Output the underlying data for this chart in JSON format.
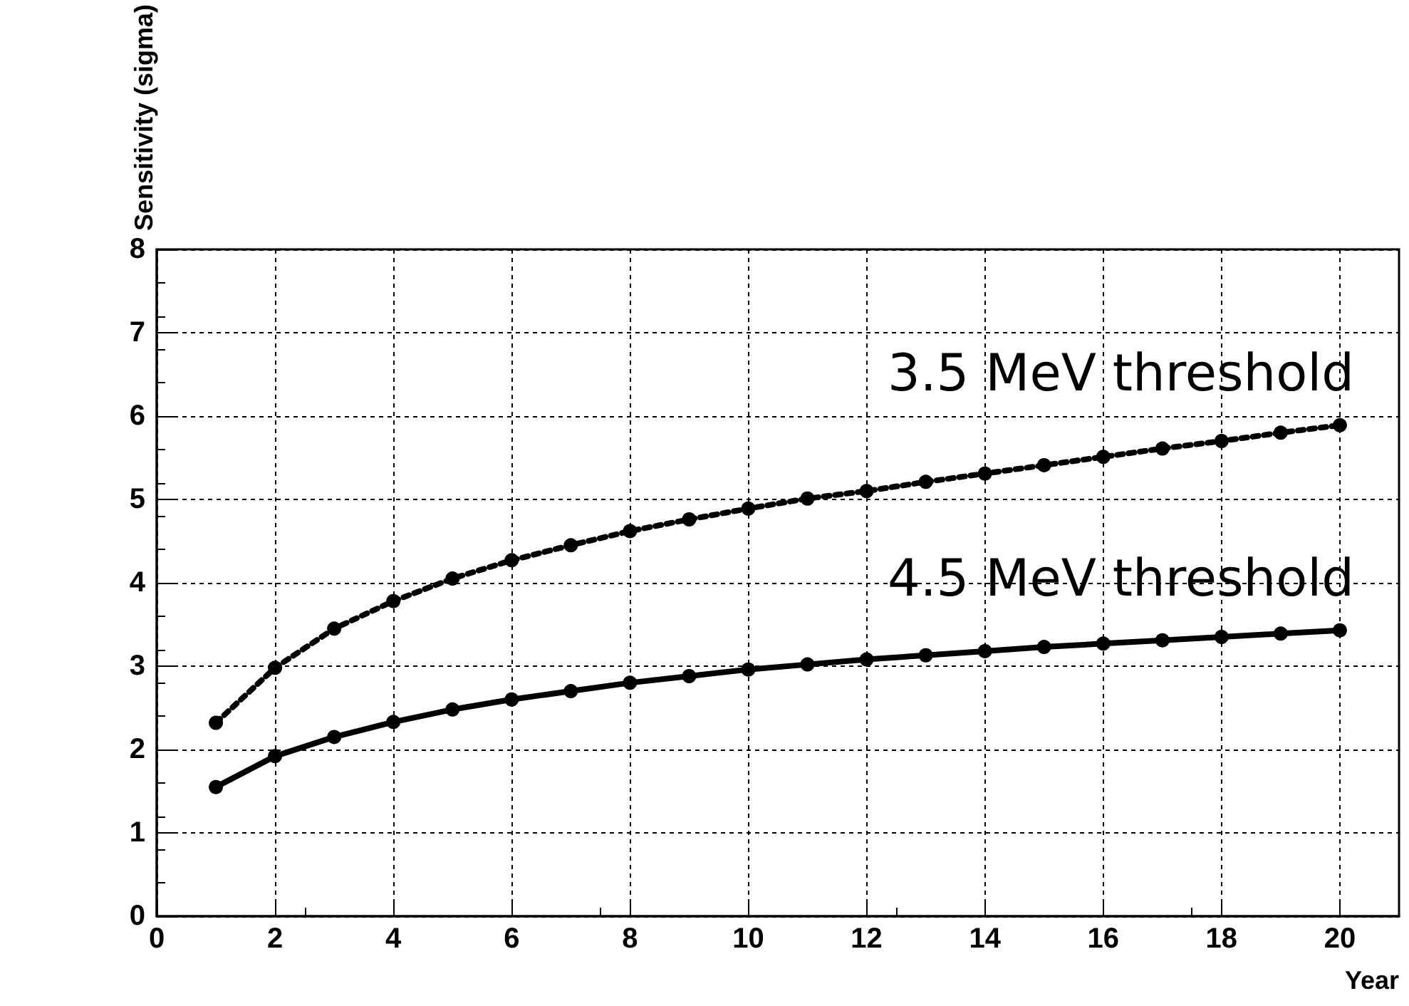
{
  "chart_data": {
    "type": "line",
    "xlabel": "Year",
    "ylabel": "Sensitivity (sigma)",
    "x": [
      1,
      2,
      3,
      4,
      5,
      6,
      7,
      8,
      9,
      10,
      11,
      12,
      13,
      14,
      15,
      16,
      17,
      18,
      19,
      20
    ],
    "xlim": [
      0,
      21
    ],
    "xticks": [
      0,
      2,
      4,
      6,
      8,
      10,
      12,
      14,
      16,
      18,
      20
    ],
    "ylim": [
      0,
      8
    ],
    "yticks": [
      0,
      1,
      2,
      3,
      4,
      5,
      6,
      7,
      8
    ],
    "grid": true,
    "marker": "circle",
    "legend": false,
    "series": [
      {
        "name": "3.5 MeV threshold",
        "color": "#000000",
        "line_style": "dotted",
        "values": [
          2.32,
          2.98,
          3.45,
          3.78,
          4.05,
          4.27,
          4.45,
          4.62,
          4.76,
          4.89,
          5.01,
          5.1,
          5.21,
          5.31,
          5.41,
          5.51,
          5.61,
          5.7,
          5.8,
          5.89
        ]
      },
      {
        "name": "4.5 MeV threshold",
        "color": "#000000",
        "line_style": "solid",
        "values": [
          1.55,
          1.92,
          2.15,
          2.33,
          2.48,
          2.6,
          2.7,
          2.8,
          2.88,
          2.96,
          3.02,
          3.08,
          3.13,
          3.18,
          3.23,
          3.27,
          3.31,
          3.35,
          3.39,
          3.43
        ]
      }
    ]
  }
}
